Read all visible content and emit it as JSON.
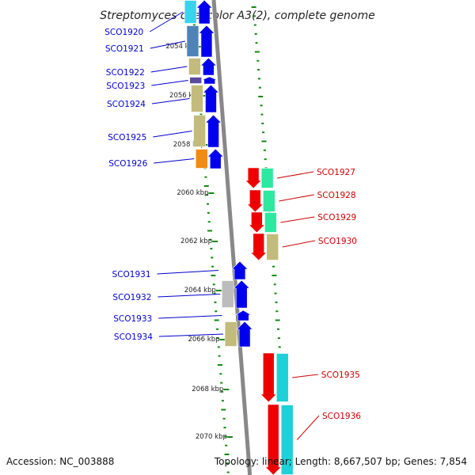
{
  "title": "Streptomyces coelicolor A3(2), complete genome",
  "footer": {
    "accession": "Accession: NC_003888",
    "summary": "Topology: linear; Length: 8,667,507 bp; Genes: 7,854"
  },
  "colors": {
    "forward": "#0000ee",
    "reverse": "#ee0000",
    "forward_label": "#0000cc",
    "reverse_label": "#cc0000",
    "backbone": "#888888",
    "tick": "#118811"
  },
  "scale": {
    "unit": "kbp",
    "labels": [
      "2054 kbp",
      "2056 kbp",
      "2058 kbp",
      "2060 kbp",
      "2062 kbp",
      "2064 kbp",
      "2066 kbp",
      "2068 kbp",
      "2070 kbp"
    ]
  },
  "genes": [
    {
      "name": "SCO1920",
      "strand": "forward",
      "category_color": "#3ad3ee"
    },
    {
      "name": "SCO1921",
      "strand": "forward",
      "category_color": "#4f83b8"
    },
    {
      "name": "SCO1922",
      "strand": "forward",
      "category_color": "#c3bb7c"
    },
    {
      "name": "SCO1923",
      "strand": "forward",
      "category_color": "#5a4aa0"
    },
    {
      "name": "SCO1924",
      "strand": "forward",
      "category_color": "#c3bb7c"
    },
    {
      "name": "SCO1925",
      "strand": "forward",
      "category_color": "#c3bb7c"
    },
    {
      "name": "SCO1926",
      "strand": "forward",
      "category_color": "#f38a12"
    },
    {
      "name": "SCO1927",
      "strand": "reverse",
      "category_color": "#2ee8a0"
    },
    {
      "name": "SCO1928",
      "strand": "reverse",
      "category_color": "#2ee8a0"
    },
    {
      "name": "SCO1929",
      "strand": "reverse",
      "category_color": "#2ee8a0"
    },
    {
      "name": "SCO1930",
      "strand": "reverse",
      "category_color": "#c3bb7c"
    },
    {
      "name": "SCO1931",
      "strand": "forward",
      "category_color": ""
    },
    {
      "name": "SCO1932",
      "strand": "forward",
      "category_color": "#bcbcbc"
    },
    {
      "name": "SCO1933",
      "strand": "forward",
      "category_color": ""
    },
    {
      "name": "SCO1934",
      "strand": "forward",
      "category_color": "#c3bb7c"
    },
    {
      "name": "SCO1935",
      "strand": "reverse",
      "category_color": "#1ed0d8"
    },
    {
      "name": "SCO1936",
      "strand": "reverse",
      "category_color": "#1ed0d8"
    }
  ]
}
